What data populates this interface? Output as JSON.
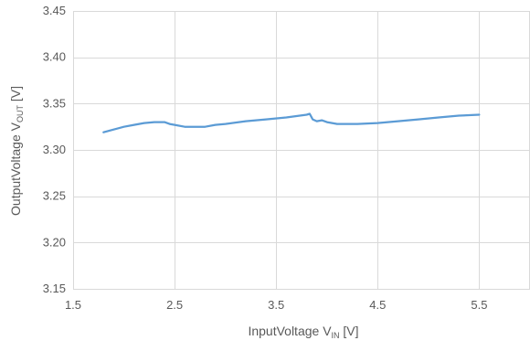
{
  "chart_data": {
    "type": "line",
    "title": "",
    "xlabel": {
      "main": "InputVoltage  V",
      "subscript": "IN",
      "unit": " [V]"
    },
    "ylabel": {
      "main": "OutputVoltage  V",
      "subscript": "OUT",
      "unit": " [V]"
    },
    "xlim": [
      1.5,
      6.0
    ],
    "ylim": [
      3.15,
      3.45
    ],
    "x_ticks": [
      1.5,
      2.5,
      3.5,
      4.5,
      5.5
    ],
    "x_tick_labels": [
      "1.5",
      "2.5",
      "3.5",
      "4.5",
      "5.5"
    ],
    "x_gridlines": [
      1.5,
      2.5,
      3.5,
      4.5,
      5.5,
      6.0
    ],
    "y_ticks": [
      3.15,
      3.2,
      3.25,
      3.3,
      3.35,
      3.4,
      3.45
    ],
    "y_tick_labels": [
      "3.15",
      "3.20",
      "3.25",
      "3.30",
      "3.35",
      "3.40",
      "3.45"
    ],
    "grid": true,
    "colors": {
      "line": "#5B9BD5",
      "grid": "#D9D9D9",
      "text": "#595959"
    },
    "series": [
      {
        "x": [
          1.8,
          1.9,
          2.0,
          2.1,
          2.2,
          2.3,
          2.4,
          2.45,
          2.5,
          2.6,
          2.7,
          2.8,
          2.9,
          3.0,
          3.2,
          3.4,
          3.6,
          3.8,
          3.83,
          3.86,
          3.9,
          3.95,
          4.0,
          4.1,
          4.3,
          4.5,
          4.7,
          4.9,
          5.1,
          5.3,
          5.5
        ],
        "y": [
          3.319,
          3.322,
          3.325,
          3.327,
          3.329,
          3.33,
          3.33,
          3.328,
          3.327,
          3.325,
          3.325,
          3.325,
          3.327,
          3.328,
          3.331,
          3.333,
          3.335,
          3.338,
          3.339,
          3.333,
          3.331,
          3.332,
          3.33,
          3.328,
          3.328,
          3.329,
          3.331,
          3.333,
          3.335,
          3.337,
          3.338
        ]
      }
    ]
  }
}
